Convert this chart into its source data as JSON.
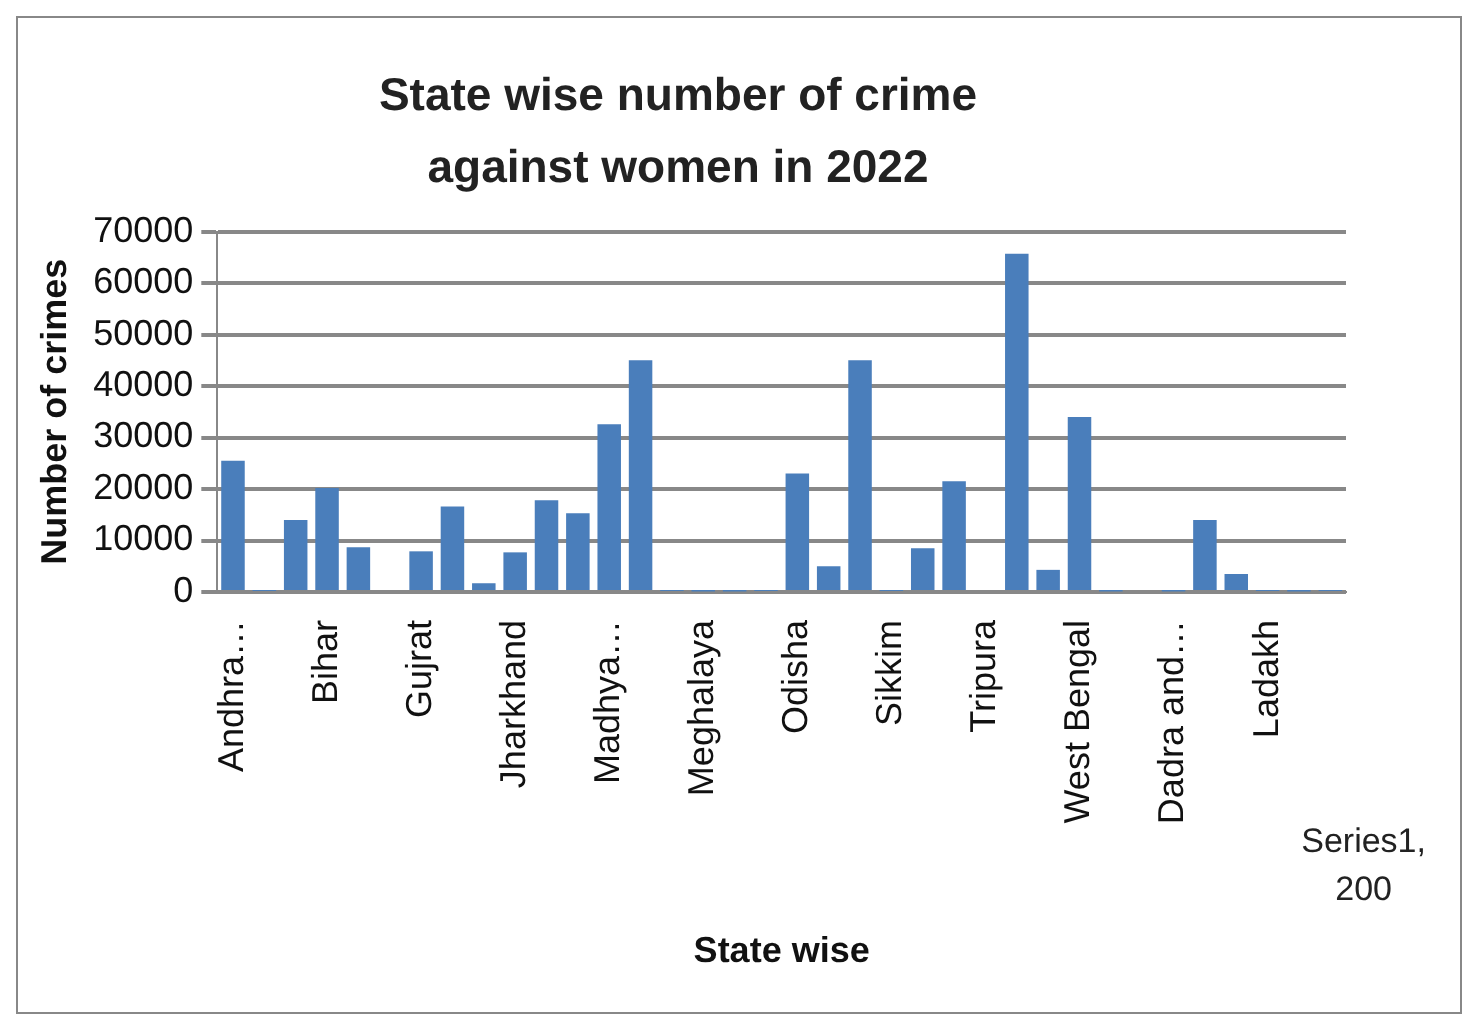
{
  "chart_data": {
    "type": "bar",
    "title": "State wise number of crime against women in 2022",
    "xlabel": "State wise",
    "ylabel": "Number of crimes",
    "categories": [
      "Andhra…",
      null,
      null,
      "Bihar",
      null,
      null,
      "Gujrat",
      null,
      null,
      "Jharkhand",
      null,
      null,
      "Madhya…",
      null,
      null,
      "Meghalaya",
      null,
      null,
      "Odisha",
      null,
      null,
      "Sikkim",
      null,
      null,
      "Tripura",
      null,
      null,
      "West Bengal",
      null,
      null,
      "Dadra and…",
      null,
      null,
      "Ladakh",
      null,
      null
    ],
    "values": [
      25500,
      200,
      14000,
      20200,
      8700,
      null,
      7900,
      16600,
      1700,
      7700,
      17800,
      15300,
      32600,
      45000,
      200,
      100,
      100,
      200,
      23000,
      5000,
      45000,
      200,
      8500,
      21500,
      null,
      65700,
      4300,
      34000,
      100,
      null,
      100,
      14000,
      3500,
      200,
      100,
      200
    ],
    "color": "#4a7ebb",
    "ylim": [
      0,
      70000
    ],
    "yticks": [
      0,
      10000,
      20000,
      30000,
      40000,
      50000,
      60000,
      70000
    ],
    "grid": "y",
    "legend": false,
    "annotations": [
      "Series1, 200"
    ]
  }
}
